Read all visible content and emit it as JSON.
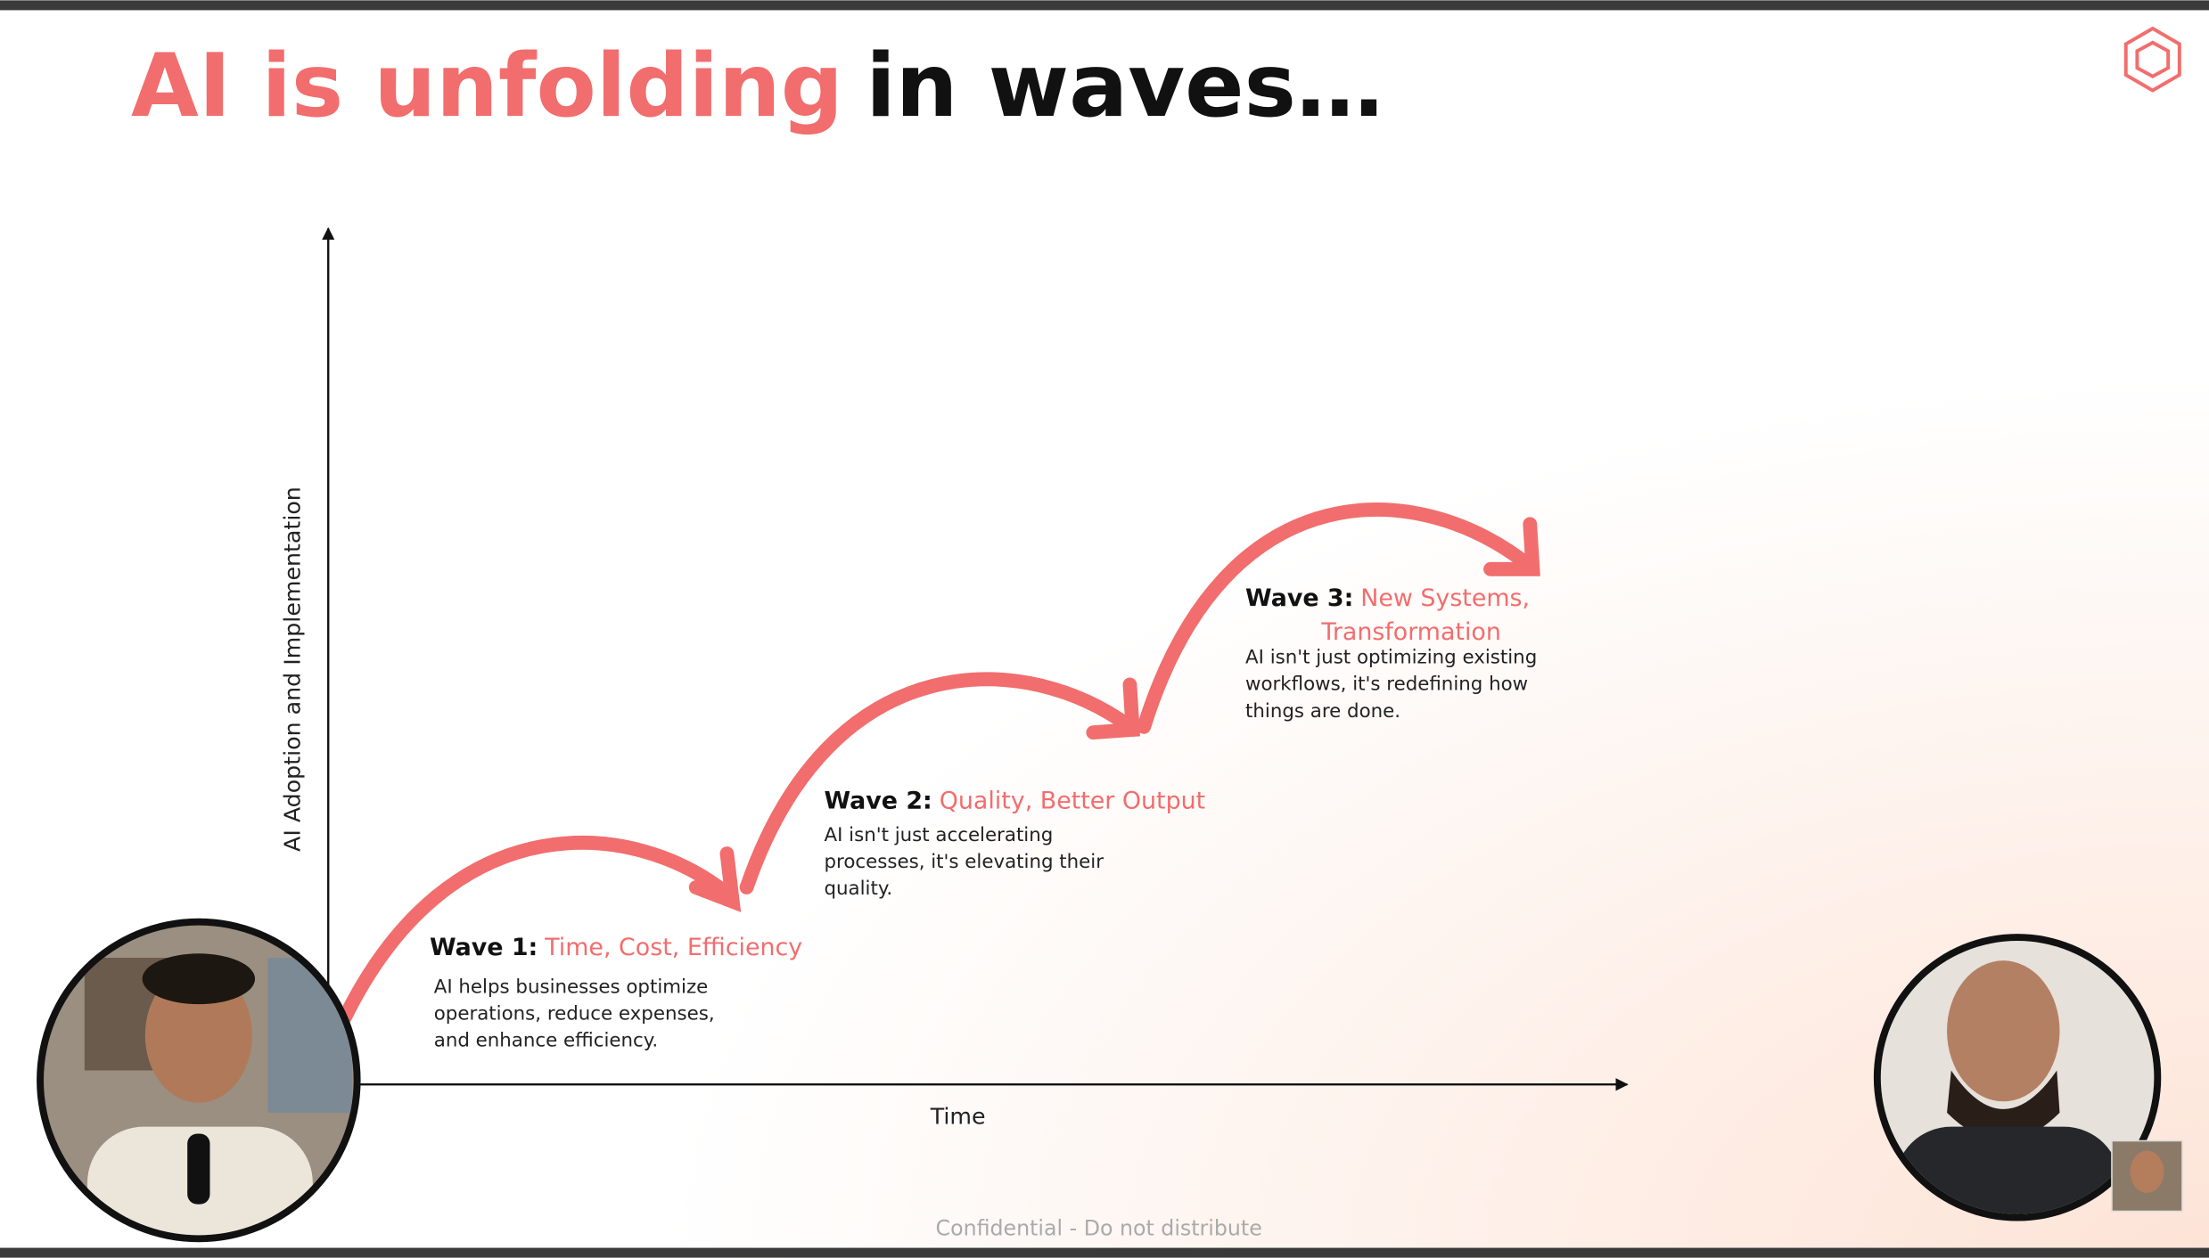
{
  "title": {
    "highlight": "AI is unfolding",
    "rest": "in waves…"
  },
  "axes": {
    "y_label": "AI Adoption and Implementation",
    "x_label": "Time"
  },
  "waves": [
    {
      "label": "Wave 1:",
      "highlight_lines": [
        "Time, Cost, Efficiency"
      ],
      "description": [
        "AI helps businesses optimize",
        "operations, reduce expenses,",
        "and enhance efficiency."
      ]
    },
    {
      "label": "Wave 2:",
      "highlight_lines": [
        "Quality, Better Output"
      ],
      "description": [
        "AI isn't just accelerating",
        "processes, it's elevating their",
        "quality."
      ]
    },
    {
      "label": "Wave 3:",
      "highlight_lines": [
        "New Systems,",
        "Transformation"
      ],
      "description": [
        "AI isn't just optimizing existing",
        "workflows, it's redefining how",
        "things are done."
      ]
    }
  ],
  "footer": "Confidential - Do not distribute"
}
